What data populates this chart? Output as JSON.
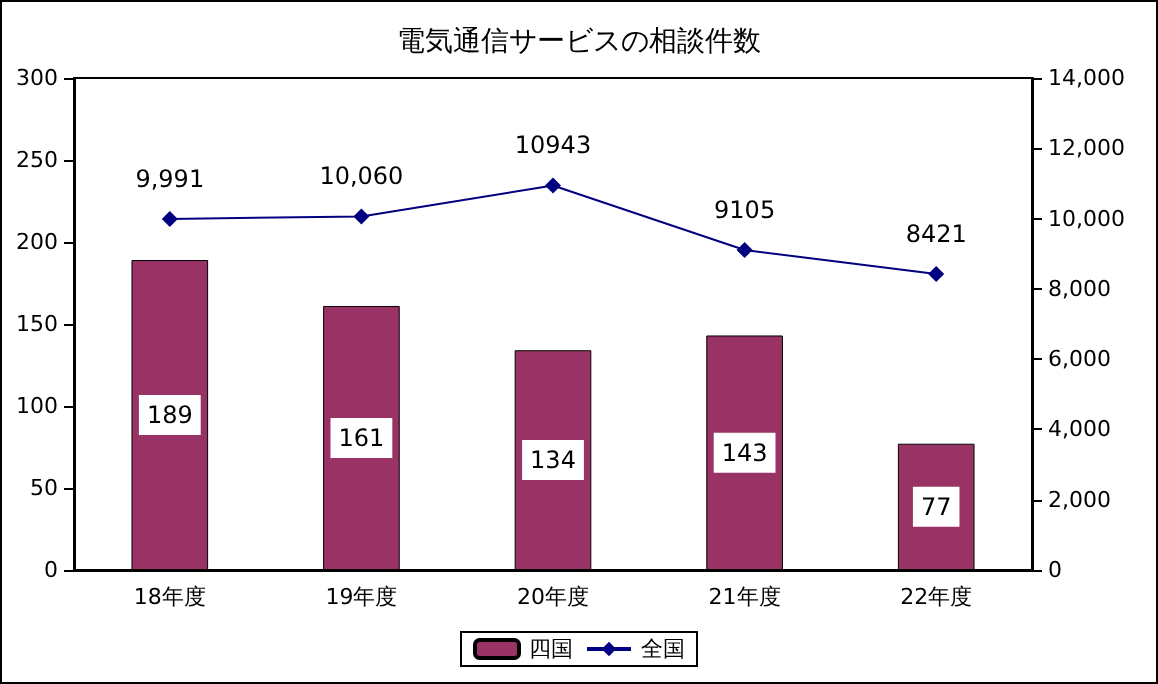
{
  "chart_data": {
    "type": "bar",
    "title": "電気通信サービスの相談件数",
    "categories": [
      "18年度",
      "19年度",
      "20年度",
      "21年度",
      "22年度"
    ],
    "series": [
      {
        "name": "四国",
        "color": "#993366",
        "values": [
          189,
          161,
          134,
          143,
          77
        ],
        "data_labels": true
      },
      {
        "name": "全国",
        "type": "line",
        "axis": "y2",
        "color": "#000080",
        "values": [
          9991,
          10060,
          10943,
          9105,
          8421
        ],
        "value_labels": [
          "9,991",
          "10,060",
          "10943",
          "9105",
          "8421"
        ],
        "marker": "diamond"
      }
    ],
    "ylim": [
      0,
      300
    ],
    "yticks": [
      0,
      50,
      100,
      150,
      200,
      250,
      300
    ],
    "y2lim": [
      0,
      14000
    ],
    "y2ticks": [
      {
        "value": 0,
        "label": "0"
      },
      {
        "value": 2000,
        "label": "2,000"
      },
      {
        "value": 4000,
        "label": "4,000"
      },
      {
        "value": 6000,
        "label": "6,000"
      },
      {
        "value": 8000,
        "label": "8,000"
      },
      {
        "value": 10000,
        "label": "10,000"
      },
      {
        "value": 12000,
        "label": "12,000"
      },
      {
        "value": 14000,
        "label": "14,000"
      }
    ],
    "grid": false,
    "legend": "bottom"
  }
}
